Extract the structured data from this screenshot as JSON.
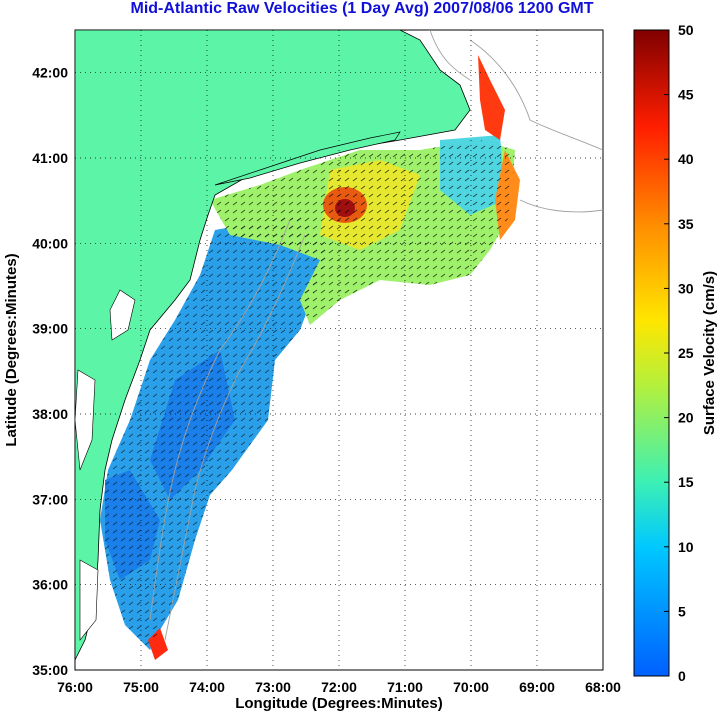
{
  "title": "Mid-Atlantic Raw Velocities (1 Day Avg) 2007/08/06 1200 GMT",
  "map": {
    "xlabel": "Longitude (Degrees:Minutes)",
    "ylabel": "Latitude (Degrees:Minutes)",
    "lon_range": [
      -76,
      -68
    ],
    "lat_range": [
      35,
      42.5
    ],
    "lon_ticks": [
      "76:00",
      "75:00",
      "74:00",
      "73:00",
      "72:00",
      "71:00",
      "70:00",
      "69:00",
      "68:00"
    ],
    "lat_ticks": [
      "35:00",
      "36:00",
      "37:00",
      "38:00",
      "39:00",
      "40:00",
      "41:00",
      "42:00"
    ],
    "grid": "dotted",
    "land_color": "#5cf5a8",
    "coast_color": "#000000",
    "bathymetry_color": "#a0a0a0"
  },
  "colorbar": {
    "label": "Surface Velocity (cm/s)",
    "min": 0,
    "max": 50,
    "tick_labels": [
      "0",
      "5",
      "10",
      "15",
      "20",
      "25",
      "30",
      "35",
      "40",
      "45",
      "50"
    ],
    "colormap": "jet"
  }
}
